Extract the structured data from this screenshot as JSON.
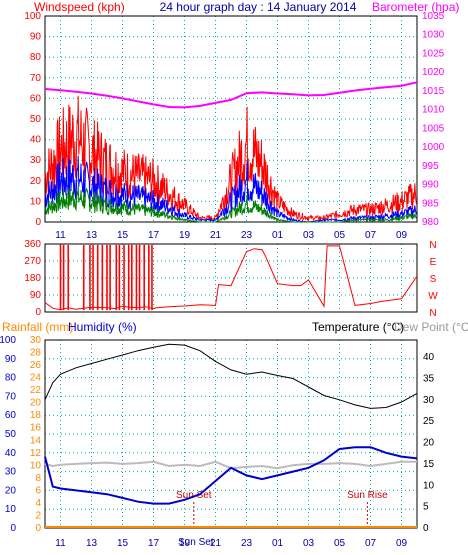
{
  "header": {
    "title": "24 hour graph day : 14 January 2014",
    "left_label": "Windspeed (kph)",
    "right_label": "Barometer (hpa)"
  },
  "lower_header": {
    "rain_label": "Rainfall (mm)",
    "humidity_label": "Humidity (%)",
    "temp_label": "Temperature (°C)",
    "dew_label": "Dew Point (°C)"
  },
  "colors": {
    "wind_gust": "#ff0000",
    "wind_avg": "#0000ff",
    "wind_low": "#008000",
    "barometer": "#ff00ff",
    "direction": "#ff0000",
    "temperature": "#000000",
    "humidity": "#0000cc",
    "dew_point": "#bbbbbb",
    "rainfall": "#ff8800",
    "axis_blue": "#0000aa",
    "axis_pink": "#ff00ff",
    "grid": "#00aaaa"
  },
  "chart_data": [
    {
      "type": "line",
      "name": "wind",
      "title": "",
      "x_ticks": [
        "11",
        "13",
        "15",
        "17",
        "19",
        "21",
        "23",
        "01",
        "03",
        "05",
        "07",
        "09"
      ],
      "y_left_ticks": [
        0,
        10,
        20,
        30,
        40,
        50,
        60,
        70,
        80,
        90,
        100
      ],
      "y_right_ticks": [
        980,
        985,
        990,
        995,
        1000,
        1005,
        1010,
        1015,
        1020,
        1025,
        1030,
        1035
      ],
      "ylim": [
        0,
        100
      ],
      "ylim_right": [
        980,
        1035
      ],
      "series": [
        {
          "name": "gust",
          "hours": [
            0,
            1,
            2,
            3,
            4,
            5,
            6,
            7,
            8,
            9,
            10,
            11,
            12,
            13,
            14,
            15,
            16,
            17,
            18,
            19,
            20,
            21,
            22,
            23,
            24
          ],
          "values": [
            22,
            35,
            42,
            34,
            28,
            24,
            22,
            20,
            14,
            8,
            2,
            2,
            20,
            38,
            28,
            10,
            4,
            2,
            2,
            4,
            6,
            6,
            8,
            10,
            14
          ]
        },
        {
          "name": "average",
          "hours": [
            0,
            1,
            2,
            3,
            4,
            5,
            6,
            7,
            8,
            9,
            10,
            11,
            12,
            13,
            14,
            15,
            16,
            17,
            18,
            19,
            20,
            21,
            22,
            23,
            24
          ],
          "values": [
            12,
            20,
            22,
            18,
            15,
            13,
            12,
            10,
            7,
            3,
            1,
            1,
            10,
            20,
            14,
            4,
            1,
            0,
            1,
            1,
            2,
            2,
            3,
            4,
            6
          ]
        },
        {
          "name": "low",
          "hours": [
            0,
            1,
            2,
            3,
            4,
            5,
            6,
            7,
            8,
            9,
            10,
            11,
            12,
            13,
            14,
            15,
            16,
            17,
            18,
            19,
            20,
            21,
            22,
            23,
            24
          ],
          "values": [
            6,
            10,
            12,
            10,
            8,
            7,
            6,
            5,
            3,
            1,
            0,
            0,
            4,
            9,
            6,
            1,
            0,
            0,
            0,
            0,
            1,
            1,
            1,
            2,
            3
          ]
        },
        {
          "name": "barometer",
          "hours": [
            0,
            1,
            2,
            3,
            4,
            5,
            6,
            7,
            8,
            9,
            10,
            11,
            12,
            13,
            14,
            15,
            16,
            17,
            18,
            19,
            20,
            21,
            22,
            23,
            24
          ],
          "values": [
            1015.5,
            1015.2,
            1014.8,
            1014.3,
            1013.7,
            1013.0,
            1012.2,
            1011.4,
            1010.7,
            1010.6,
            1011.0,
            1011.8,
            1012.6,
            1014.4,
            1014.6,
            1014.3,
            1014.1,
            1013.8,
            1013.9,
            1014.5,
            1015.1,
            1015.6,
            1016.0,
            1016.4,
            1017.3
          ]
        }
      ]
    },
    {
      "type": "line",
      "name": "direction",
      "y_left_ticks": [
        0,
        90,
        180,
        270,
        360
      ],
      "y_right_labels": [
        "N",
        "W",
        "S",
        "E",
        "N"
      ],
      "ylim": [
        0,
        360
      ],
      "series": [
        {
          "name": "direction",
          "hours": [
            0,
            0.5,
            1,
            1.5,
            2,
            3,
            4,
            4.5,
            5,
            5.5,
            6,
            6.5,
            7,
            7.2,
            8,
            9,
            10,
            11,
            11.2,
            12,
            13,
            13.5,
            14,
            14.2,
            15,
            16,
            16.5,
            17,
            18,
            18.2,
            19,
            20,
            21,
            22,
            23,
            24
          ],
          "values": [
            50,
            20,
            12,
            22,
            15,
            25,
            22,
            18,
            30,
            25,
            22,
            28,
            18,
            22,
            28,
            32,
            38,
            35,
            145,
            140,
            320,
            335,
            330,
            300,
            150,
            140,
            140,
            170,
            30,
            350,
            350,
            35,
            45,
            60,
            70,
            190
          ]
        }
      ]
    },
    {
      "type": "line",
      "name": "climate",
      "x_ticks": [
        "11",
        "13",
        "15",
        "17",
        "19",
        "21",
        "23",
        "01",
        "03",
        "05",
        "07",
        "09"
      ],
      "x_ticks_bottom": [
        "Sun Set",
        "23",
        "Sun Rise"
      ],
      "y_left_ticks": [
        0,
        10,
        20,
        30,
        40,
        50,
        60,
        70,
        80,
        90,
        100
      ],
      "y_mid_ticks": [
        0,
        2,
        4,
        6,
        8,
        10,
        12,
        14,
        16,
        18,
        20,
        22,
        24,
        26,
        28,
        30
      ],
      "y_right_ticks": [
        0,
        5,
        10,
        15,
        20,
        25,
        30,
        35,
        40
      ],
      "ylim_temp": [
        0,
        44
      ],
      "ylim_humidity": [
        0,
        100
      ],
      "annotations": [
        "Sun Set",
        "Sun Rise"
      ],
      "series": [
        {
          "name": "temperature",
          "hours": [
            0,
            0.5,
            1,
            2,
            3,
            4,
            5,
            6,
            7,
            8,
            9,
            10,
            11,
            12,
            13,
            14,
            15,
            16,
            17,
            18,
            19,
            20,
            21,
            22,
            23,
            24
          ],
          "values": [
            30,
            34,
            36,
            37.5,
            38.5,
            39.5,
            40.5,
            41.5,
            42.3,
            43,
            42.8,
            41.5,
            39,
            37,
            36,
            36.5,
            35.7,
            35,
            33,
            31,
            30,
            28.8,
            28,
            28.2,
            29.5,
            31.5
          ]
        },
        {
          "name": "humidity",
          "hours": [
            0,
            0.5,
            1,
            2,
            3,
            4,
            5,
            6,
            7,
            8,
            9,
            10,
            11,
            12,
            13,
            14,
            15,
            16,
            17,
            18,
            19,
            20,
            21,
            22,
            23,
            24
          ],
          "values": [
            38,
            22,
            21,
            20,
            19,
            18,
            16,
            14,
            13,
            13,
            15,
            18,
            25,
            32,
            28,
            26,
            28,
            30,
            32,
            36,
            42,
            43,
            43,
            40,
            38,
            37
          ]
        },
        {
          "name": "dew_point",
          "hours": [
            0,
            0.5,
            1,
            2,
            3,
            4,
            5,
            6,
            7,
            8,
            9,
            10,
            11,
            12,
            13,
            14,
            15,
            16,
            17,
            18,
            19,
            20,
            21,
            22,
            23,
            24
          ],
          "values": [
            15,
            14.5,
            14.8,
            15,
            15.2,
            15.3,
            15,
            15.2,
            15.5,
            14.5,
            14.8,
            14.5,
            15.5,
            14,
            14.3,
            14.5,
            14,
            14.7,
            15,
            15,
            15.2,
            15,
            14.5,
            15,
            15.5,
            15.5
          ]
        },
        {
          "name": "rainfall",
          "hours": [
            0,
            24
          ],
          "values": [
            0,
            0
          ]
        }
      ]
    }
  ]
}
